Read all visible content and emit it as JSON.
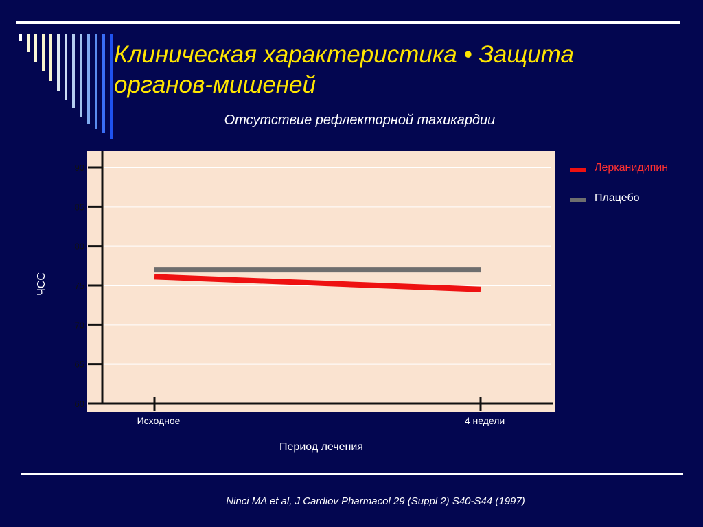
{
  "slide": {
    "title": "Клиническая характеристика • Защита органов-мишеней",
    "citation": "Ninci  MA et al, J Cardiov Pharmacol 29 (Suppl 2) S40-S44 (1997)"
  },
  "colors": {
    "background": "#030650",
    "title": "#ffe600",
    "plot_background": "#fae3d0",
    "lercanidipine": "#ee1111",
    "placebo": "#6e6e6e"
  },
  "chart_data": {
    "type": "line",
    "title": "Отсутствие рефлекторной тахикардии",
    "xlabel": "Период лечения",
    "ylabel": "ЧСС",
    "categories": [
      "Исходное",
      "4 недели"
    ],
    "ylim": [
      60,
      90
    ],
    "yticks": [
      90,
      85,
      80,
      75,
      70,
      65,
      60
    ],
    "grid": true,
    "legend_position": "right",
    "series": [
      {
        "name": "Лерканидипин",
        "values": [
          76.1,
          74.5
        ],
        "color": "#ee1111"
      },
      {
        "name": "Плацебо",
        "values": [
          77,
          77
        ],
        "color": "#6e6e6e"
      }
    ]
  }
}
